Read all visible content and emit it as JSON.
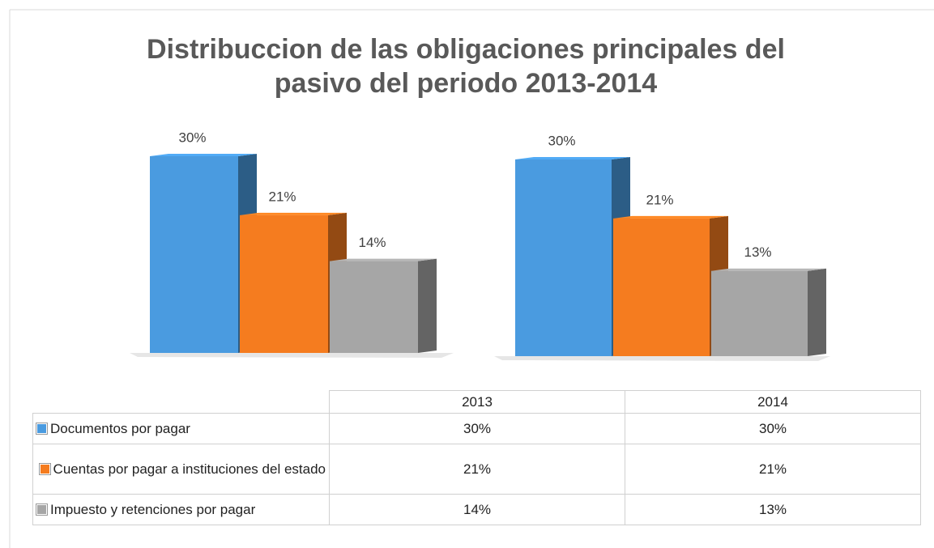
{
  "chart_data": {
    "type": "bar",
    "title": "Distribuccion de las obligaciones principales del pasivo del periodo  2013-2014",
    "categories": [
      "2013",
      "2014"
    ],
    "series": [
      {
        "name": "Documentos por pagar",
        "color": "#4a9be0",
        "values": [
          30,
          30
        ],
        "value_labels": [
          "30%",
          "30%"
        ]
      },
      {
        "name": "Cuentas por pagar a instituciones del estado",
        "color": "#f57c1f",
        "values": [
          21,
          21
        ],
        "value_labels": [
          "21%",
          "21%"
        ]
      },
      {
        "name": "Impuesto y retenciones por pagar",
        "color": "#a6a6a6",
        "values": [
          14,
          13
        ],
        "value_labels": [
          "14%",
          "13%"
        ]
      }
    ],
    "ylim": [
      0,
      35
    ],
    "legend": "table"
  }
}
